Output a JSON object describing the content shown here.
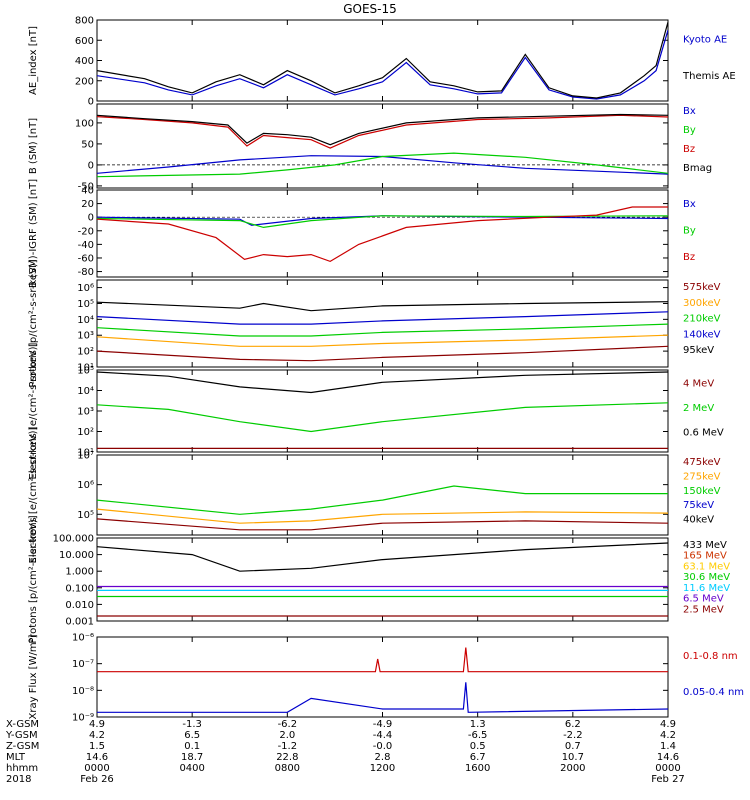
{
  "title": "GOES-15",
  "chart_data": [
    {
      "type": "line",
      "ylabel": "AE_index [nT]",
      "ylim": [
        0,
        800
      ],
      "log": false,
      "yticks": [
        {
          "v": 0,
          "label": "0"
        },
        {
          "v": 200,
          "label": "200"
        },
        {
          "v": 400,
          "label": "400"
        },
        {
          "v": 600,
          "label": "600"
        },
        {
          "v": 800,
          "label": "800"
        }
      ],
      "series": [
        {
          "name": "Kyoto AE",
          "color": "#0000cc",
          "x": [
            0,
            2,
            3,
            4,
            5,
            6,
            7,
            8,
            9,
            10,
            11,
            12,
            13,
            14,
            15,
            16,
            17,
            18,
            19,
            20,
            21,
            22,
            23,
            23.5,
            24
          ],
          "y": [
            250,
            180,
            110,
            60,
            150,
            220,
            130,
            260,
            160,
            60,
            120,
            190,
            380,
            160,
            120,
            70,
            80,
            430,
            110,
            40,
            20,
            60,
            200,
            300,
            700
          ]
        },
        {
          "name": "Themis AE",
          "color": "#000000",
          "x": [
            0,
            2,
            3,
            4,
            5,
            6,
            7,
            8,
            9,
            10,
            11,
            12,
            13,
            14,
            15,
            16,
            17,
            18,
            19,
            20,
            21,
            22,
            23,
            23.5,
            24
          ],
          "y": [
            300,
            220,
            140,
            80,
            190,
            260,
            160,
            300,
            200,
            80,
            150,
            230,
            420,
            190,
            150,
            90,
            100,
            460,
            130,
            50,
            30,
            80,
            250,
            350,
            780
          ]
        }
      ]
    },
    {
      "type": "line",
      "ylabel": "B (SM) [nT]",
      "ylim": [
        -55,
        145
      ],
      "log": false,
      "yticks": [
        {
          "v": -50,
          "label": "-50"
        },
        {
          "v": 0,
          "label": "0"
        },
        {
          "v": 50,
          "label": "50"
        },
        {
          "v": 100,
          "label": "100"
        }
      ],
      "series": [
        {
          "name": "Bx",
          "color": "#0000cc",
          "x": [
            0,
            3,
            6,
            9,
            12,
            15,
            18,
            21,
            24
          ],
          "y": [
            -20,
            -5,
            12,
            22,
            20,
            5,
            -8,
            -15,
            -22
          ]
        },
        {
          "name": "By",
          "color": "#00cc00",
          "x": [
            0,
            3,
            6,
            8,
            10,
            12,
            15,
            18,
            21,
            24
          ],
          "y": [
            -28,
            -25,
            -22,
            -12,
            0,
            20,
            28,
            18,
            0,
            -20
          ]
        },
        {
          "name": "Bz",
          "color": "#cc0000",
          "x": [
            0,
            2,
            4,
            5.5,
            6.3,
            7,
            8,
            9,
            9.8,
            11,
            13,
            16,
            19,
            22,
            24
          ],
          "y": [
            115,
            108,
            100,
            90,
            45,
            70,
            65,
            60,
            40,
            70,
            95,
            108,
            112,
            118,
            114
          ]
        },
        {
          "name": "Bmag",
          "color": "#000000",
          "x": [
            0,
            2,
            4,
            5.5,
            6.3,
            7,
            8,
            9,
            9.8,
            11,
            13,
            16,
            19,
            22,
            24
          ],
          "y": [
            118,
            110,
            103,
            95,
            52,
            75,
            72,
            66,
            48,
            75,
            100,
            112,
            116,
            120,
            118
          ]
        }
      ]
    },
    {
      "type": "line",
      "ylabel": "B (SM)-IGRF (SM) [nT]",
      "ylim": [
        -88,
        40
      ],
      "log": false,
      "yticks": [
        {
          "v": -80,
          "label": "-80"
        },
        {
          "v": -60,
          "label": "-60"
        },
        {
          "v": -40,
          "label": "-40"
        },
        {
          "v": -20,
          "label": "-20"
        },
        {
          "v": 0,
          "label": "0"
        },
        {
          "v": 20,
          "label": "20"
        },
        {
          "v": 40,
          "label": "40"
        }
      ],
      "series": [
        {
          "name": "Bx",
          "color": "#0000cc",
          "x": [
            0,
            6,
            6.5,
            9,
            12,
            18,
            24
          ],
          "y": [
            0,
            -3,
            -12,
            -2,
            2,
            0,
            -2
          ]
        },
        {
          "name": "By",
          "color": "#00cc00",
          "x": [
            0,
            6,
            7,
            9,
            12,
            18,
            24
          ],
          "y": [
            -2,
            -5,
            -15,
            -5,
            2,
            1,
            2
          ]
        },
        {
          "name": "Bz",
          "color": "#cc0000",
          "x": [
            0,
            3,
            5,
            6.2,
            7,
            8,
            9,
            9.8,
            11,
            13,
            16,
            19,
            21,
            22.5,
            24
          ],
          "y": [
            -3,
            -10,
            -30,
            -62,
            -55,
            -58,
            -55,
            -65,
            -40,
            -15,
            -5,
            0,
            3,
            15,
            15
          ]
        }
      ]
    },
    {
      "type": "line",
      "ylabel": "Protons [p/(cm²-s-sr-keV)]",
      "ylim": [
        10,
        3000000
      ],
      "log": true,
      "yticks": [
        {
          "v": 10,
          "label": "10¹"
        },
        {
          "v": 100,
          "label": "10²"
        },
        {
          "v": 1000,
          "label": "10³"
        },
        {
          "v": 10000,
          "label": "10⁴"
        },
        {
          "v": 100000,
          "label": "10⁵"
        },
        {
          "v": 1000000,
          "label": "10⁶"
        }
      ],
      "series": [
        {
          "name": "575keV",
          "color": "#8b0000",
          "x": [
            0,
            6,
            9,
            12,
            18,
            24
          ],
          "y": [
            100,
            30,
            25,
            40,
            80,
            200
          ]
        },
        {
          "name": "300keV",
          "color": "#ffa500",
          "x": [
            0,
            6,
            9,
            12,
            18,
            24
          ],
          "y": [
            800,
            200,
            200,
            300,
            500,
            1000
          ]
        },
        {
          "name": "210keV",
          "color": "#00cc00",
          "x": [
            0,
            6,
            9,
            12,
            18,
            24
          ],
          "y": [
            3000,
            900,
            900,
            1500,
            2500,
            5000
          ]
        },
        {
          "name": "140keV",
          "color": "#0000cc",
          "x": [
            0,
            6,
            9,
            12,
            18,
            24
          ],
          "y": [
            15000,
            5000,
            5000,
            8000,
            15000,
            30000
          ]
        },
        {
          "name": "95keV",
          "color": "#000000",
          "x": [
            0,
            6,
            7,
            9,
            12,
            18,
            24
          ],
          "y": [
            120000,
            50000,
            100000,
            35000,
            70000,
            100000,
            130000
          ]
        }
      ]
    },
    {
      "type": "line",
      "ylabel": "Electrons [e/(cm²-s-sr-keV)]",
      "ylim": [
        10,
        100000
      ],
      "log": true,
      "yticks": [
        {
          "v": 10,
          "label": "10¹"
        },
        {
          "v": 100,
          "label": "10²"
        },
        {
          "v": 1000,
          "label": "10³"
        },
        {
          "v": 10000,
          "label": "10⁴"
        },
        {
          "v": 100000,
          "label": "10⁵"
        }
      ],
      "series": [
        {
          "name": "4 MeV",
          "color": "#8b0000",
          "x": [
            0,
            24
          ],
          "y": [
            15,
            15
          ]
        },
        {
          "name": "2 MeV",
          "color": "#00cc00",
          "x": [
            0,
            3,
            6,
            9,
            12,
            18,
            24
          ],
          "y": [
            2000,
            1200,
            300,
            100,
            300,
            1500,
            2500
          ]
        },
        {
          "name": "0.6 MeV",
          "color": "#000000",
          "x": [
            0,
            3,
            6,
            9,
            12,
            18,
            24
          ],
          "y": [
            80000,
            50000,
            15000,
            8000,
            25000,
            55000,
            80000
          ]
        }
      ]
    },
    {
      "type": "line",
      "ylabel": "Electrons [e/(cm²-s-sr-keV)]",
      "ylim": [
        20000,
        10000000
      ],
      "log": true,
      "yticks": [
        {
          "v": 100000,
          "label": "10⁵"
        },
        {
          "v": 1000000,
          "label": "10⁶"
        },
        {
          "v": 10000000,
          "label": "10⁷"
        }
      ],
      "series": [
        {
          "name": "475keV",
          "color": "#8b0000",
          "x": [
            0,
            6,
            9,
            12,
            18,
            24
          ],
          "y": [
            70000,
            30000,
            30000,
            50000,
            60000,
            50000
          ]
        },
        {
          "name": "275keV",
          "color": "#ffa500",
          "x": [
            0,
            6,
            9,
            12,
            18,
            24
          ],
          "y": [
            150000,
            50000,
            60000,
            100000,
            120000,
            110000
          ]
        },
        {
          "name": "150keV",
          "color": "#00cc00",
          "x": [
            0,
            6,
            9,
            12,
            15,
            18,
            24
          ],
          "y": [
            300000,
            100000,
            150000,
            300000,
            900000,
            500000,
            500000
          ]
        },
        {
          "name": "75keV",
          "color": "#0000cc",
          "x": [
            0,
            24
          ],
          "y": [
            null,
            null
          ]
        },
        {
          "name": "40keV",
          "color": "#000000",
          "x": [
            0,
            24
          ],
          "y": [
            null,
            null
          ]
        }
      ]
    },
    {
      "type": "line",
      "ylabel": "Protons [p/(cm²-s-sr-keV)]",
      "ylim": [
        0.001,
        100
      ],
      "log": true,
      "yticks": [
        {
          "v": 0.001,
          "label": "0.001"
        },
        {
          "v": 0.01,
          "label": "0.010"
        },
        {
          "v": 0.1,
          "label": "0.100"
        },
        {
          "v": 1,
          "label": "1.000"
        },
        {
          "v": 10,
          "label": "10.000"
        },
        {
          "v": 100,
          "label": "100.000"
        }
      ],
      "series": [
        {
          "name": "433 MeV",
          "color": "#000000",
          "x": [
            0,
            4,
            6,
            9,
            12,
            18,
            24
          ],
          "y": [
            30,
            10,
            1,
            1.5,
            5,
            20,
            50
          ]
        },
        {
          "name": "165 MeV",
          "color": "#cc3300",
          "x": [
            0,
            24
          ],
          "y": [
            null,
            null
          ]
        },
        {
          "name": "63.1 MeV",
          "color": "#ffcc00",
          "x": [
            0,
            24
          ],
          "y": [
            null,
            null
          ]
        },
        {
          "name": "30.6 MeV",
          "color": "#00cc00",
          "x": [
            0,
            24
          ],
          "y": [
            0.03,
            0.03
          ]
        },
        {
          "name": "11.6 MeV",
          "color": "#00ccff",
          "x": [
            0,
            24
          ],
          "y": [
            0.07,
            0.07
          ]
        },
        {
          "name": "6.5 MeV",
          "color": "#6600cc",
          "x": [
            0,
            24
          ],
          "y": [
            0.12,
            0.12
          ]
        },
        {
          "name": "2.5 MeV",
          "color": "#8b0000",
          "x": [
            0,
            24
          ],
          "y": [
            0.002,
            0.002
          ]
        }
      ]
    },
    {
      "type": "line",
      "ylabel": "Xray Flux [W/m²]",
      "ylim": [
        1e-09,
        1e-06
      ],
      "log": true,
      "yticks": [
        {
          "v": 1e-09,
          "label": "10⁻⁹"
        },
        {
          "v": 1e-08,
          "label": "10⁻⁸"
        },
        {
          "v": 1e-07,
          "label": "10⁻⁷"
        },
        {
          "v": 1e-06,
          "label": "10⁻⁶"
        }
      ],
      "series": [
        {
          "name": "0.1-0.8 nm",
          "color": "#cc0000",
          "x": [
            0,
            11.7,
            11.8,
            11.9,
            15.4,
            15.5,
            15.6,
            24
          ],
          "y": [
            5e-08,
            5e-08,
            1.5e-07,
            5e-08,
            5e-08,
            4e-07,
            5e-08,
            5e-08
          ]
        },
        {
          "name": "0.05-0.4 nm",
          "color": "#0000cc",
          "x": [
            0,
            8,
            9,
            12,
            15.4,
            15.5,
            15.6,
            24
          ],
          "y": [
            1.5e-09,
            1.5e-09,
            5e-09,
            2e-09,
            2e-09,
            2e-08,
            1.5e-09,
            2e-09
          ]
        }
      ]
    }
  ],
  "time_axis": {
    "xlim": [
      0,
      24
    ],
    "tick_positions": [
      0,
      4,
      8,
      12,
      16,
      20,
      24
    ],
    "rows": [
      {
        "label": "X-GSM",
        "values": [
          "4.9",
          "-1.3",
          "-6.2",
          "-4.9",
          "1.3",
          "6.2",
          "4.9"
        ]
      },
      {
        "label": "Y-GSM",
        "values": [
          "4.2",
          "6.5",
          "2.0",
          "-4.4",
          "-6.5",
          "-2.2",
          "4.2"
        ]
      },
      {
        "label": "Z-GSM",
        "values": [
          "1.5",
          "0.1",
          "-1.2",
          "-0.0",
          "0.5",
          "0.7",
          "1.4"
        ]
      },
      {
        "label": "MLT",
        "values": [
          "14.6",
          "18.7",
          "22.8",
          "2.8",
          "6.7",
          "10.7",
          "14.6"
        ]
      },
      {
        "label": "hhmm",
        "values": [
          "0000",
          "0400",
          "0800",
          "1200",
          "1600",
          "2000",
          "0000"
        ]
      },
      {
        "label": "2018",
        "values": [
          "Feb 26",
          "",
          "",
          "",
          "",
          "",
          "Feb 27"
        ]
      }
    ]
  }
}
